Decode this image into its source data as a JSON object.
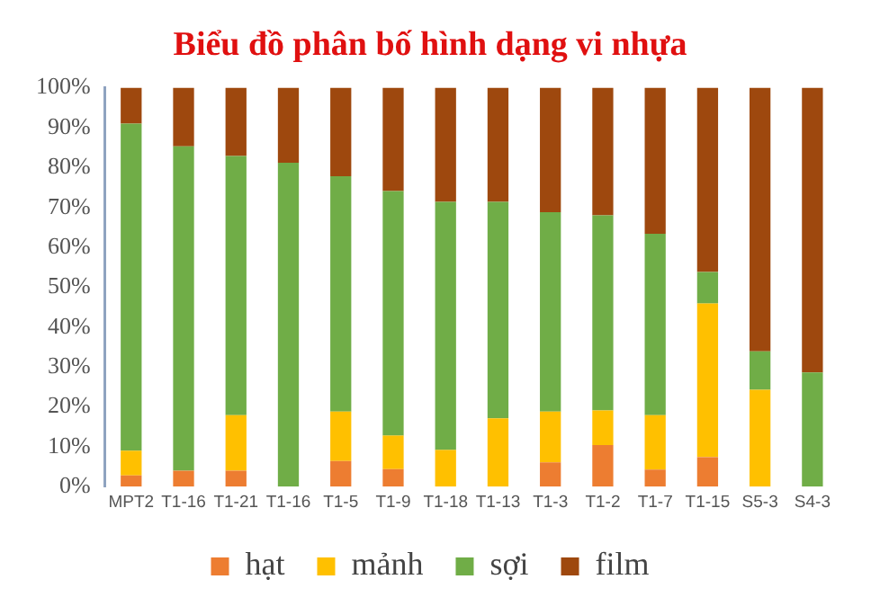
{
  "chart_data": {
    "type": "bar",
    "title": "Biểu đồ phân bố hình dạng vi nhựa",
    "stacked": true,
    "categories": [
      "MPT2",
      "T1-16",
      "T1-21",
      "T1-16",
      "T1-5",
      "T1-9",
      "T1-18",
      "T1-13",
      "T1-3",
      "T1-2",
      "T1-7",
      "T1-15",
      "S5-3",
      "S4-3"
    ],
    "series": [
      {
        "name": "hạt",
        "color": "#ed7d31",
        "values": [
          2.8,
          4,
          4,
          0,
          6.4,
          4.4,
          0,
          0,
          6.1,
          10.4,
          4.3,
          7.4,
          0,
          0
        ]
      },
      {
        "name": "mảnh",
        "color": "#ffc000",
        "values": [
          6.2,
          0,
          13.9,
          0,
          12.4,
          8.4,
          9.2,
          17.1,
          12.7,
          8.7,
          13.6,
          38.5,
          24.3,
          0
        ]
      },
      {
        "name": "sợi",
        "color": "#70ad47",
        "values": [
          82,
          81.3,
          65,
          81.2,
          59,
          61.3,
          62.2,
          54.3,
          50,
          48.9,
          45.5,
          7.9,
          9.6,
          28.6
        ]
      },
      {
        "name": "film",
        "color": "#9e480e",
        "values": [
          9,
          14.7,
          17.1,
          18.8,
          22.2,
          25.9,
          28.6,
          28.6,
          31.2,
          32,
          36.6,
          46.2,
          66.1,
          71.4
        ]
      }
    ],
    "ylim": [
      0,
      100
    ],
    "yticks": [
      {
        "value": 0,
        "label": "0%"
      },
      {
        "value": 10,
        "label": "10%"
      },
      {
        "value": 20,
        "label": "20%"
      },
      {
        "value": 30,
        "label": "30%"
      },
      {
        "value": 40,
        "label": "40%"
      },
      {
        "value": 50,
        "label": "50%"
      },
      {
        "value": 60,
        "label": "60%"
      },
      {
        "value": 70,
        "label": "70%"
      },
      {
        "value": 80,
        "label": "80%"
      },
      {
        "value": 90,
        "label": "90%"
      },
      {
        "value": 100,
        "label": "100%"
      }
    ],
    "grid": false,
    "legend": "bottom"
  }
}
